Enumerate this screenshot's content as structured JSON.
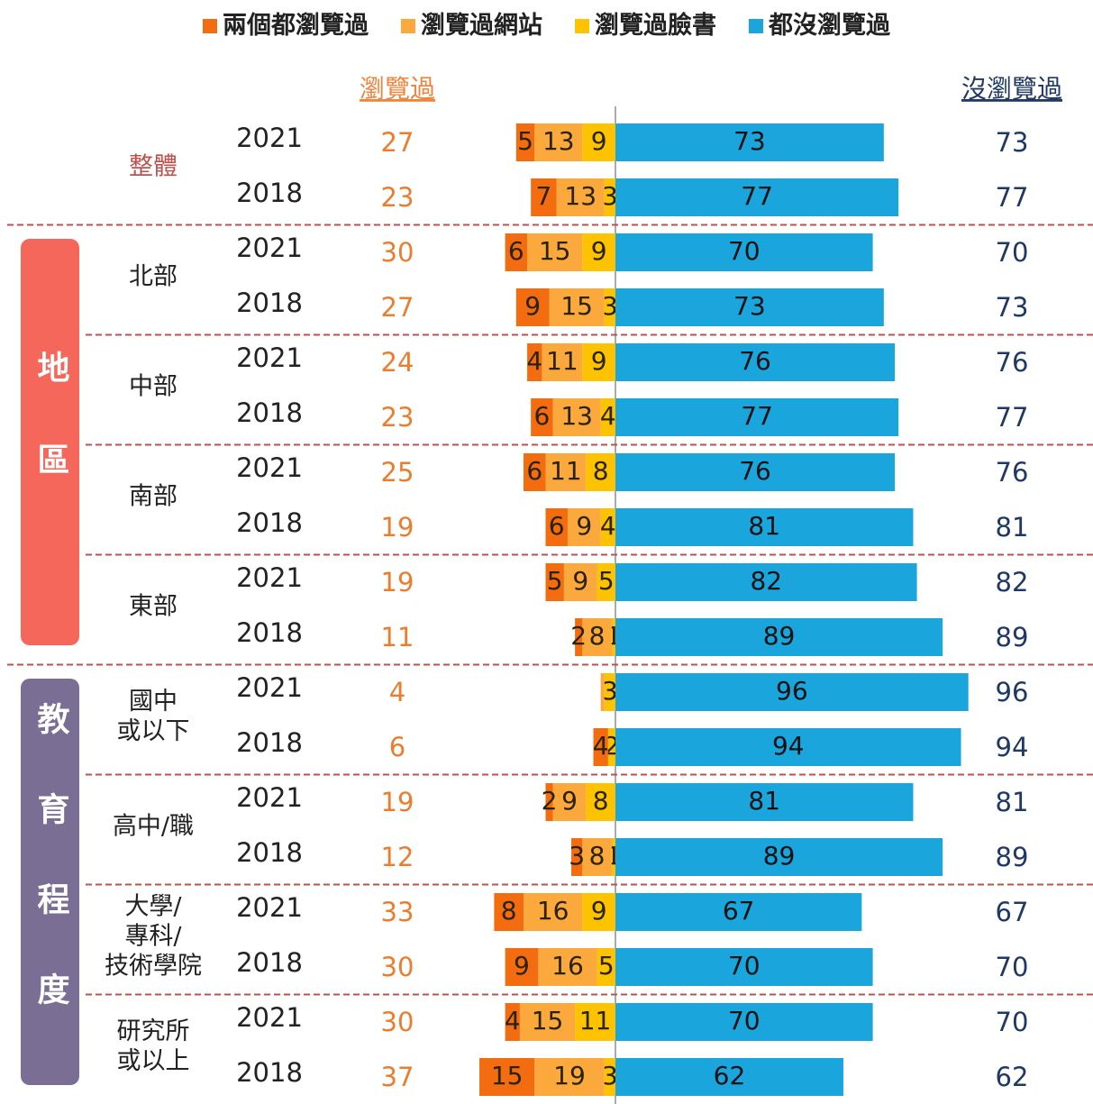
{
  "chart_data": {
    "type": "bar",
    "orientation": "horizontal",
    "stacked": "diverging",
    "legend": "top",
    "viewed_header": "瀏覽過",
    "not_viewed_header": "沒瀏覽過",
    "sections": [
      {
        "label": null,
        "color": null,
        "subgroups": [
          "整體"
        ]
      },
      {
        "label": "地區",
        "color": "#f4675a",
        "subgroups": [
          "北部",
          "中部",
          "南部",
          "東部"
        ]
      },
      {
        "label": "教育程度",
        "color": "#7a6e95",
        "subgroups": [
          "國中\n或以下",
          "高中/職",
          "大學/\n專科/\n技術學院",
          "研究所\n或以上"
        ]
      }
    ],
    "categories": [
      "2021",
      "2018",
      "2021",
      "2018",
      "2021",
      "2018",
      "2021",
      "2018",
      "2021",
      "2018",
      "2021",
      "2018",
      "2021",
      "2018",
      "2021",
      "2018",
      "2021",
      "2018"
    ],
    "series": [
      {
        "name": "兩個都瀏覽過",
        "color": "#f36c10",
        "side": "left",
        "values": [
          5,
          7,
          6,
          9,
          4,
          6,
          6,
          6,
          5,
          2,
          0,
          4,
          2,
          3,
          8,
          9,
          4,
          15
        ],
        "value_labels": [
          "5",
          "7",
          "6",
          "9",
          "4",
          "6",
          "6",
          "6",
          "5",
          "2",
          null,
          "4",
          "2",
          "3",
          "8",
          "9",
          "4",
          "15"
        ]
      },
      {
        "name": "瀏覽過網站",
        "color": "#fba83c",
        "side": "left",
        "values": [
          13,
          13,
          15,
          15,
          11,
          13,
          11,
          9,
          9,
          8,
          1,
          0,
          9,
          8,
          16,
          16,
          15,
          19
        ],
        "value_labels": [
          "13",
          "13",
          "15",
          "15",
          "11",
          "13",
          "11",
          "9",
          "9",
          "8",
          null,
          null,
          "9",
          "8",
          "16",
          "16",
          "15",
          "19"
        ]
      },
      {
        "name": "瀏覽過臉書",
        "color": "#fdc300",
        "side": "left",
        "values": [
          9,
          3,
          9,
          3,
          9,
          4,
          8,
          4,
          5,
          1,
          3,
          2,
          8,
          1,
          9,
          5,
          11,
          3
        ],
        "value_labels": [
          "9",
          "3",
          "9",
          "3",
          "9",
          "4",
          "8",
          "4",
          "5",
          "1",
          "3",
          "2",
          "8",
          "1",
          "9",
          "5",
          "11",
          "3"
        ]
      },
      {
        "name": "都沒瀏覽過",
        "color": "#1aa5dd",
        "side": "right",
        "values": [
          73,
          77,
          70,
          73,
          76,
          77,
          76,
          81,
          82,
          89,
          96,
          94,
          81,
          89,
          67,
          70,
          70,
          62
        ]
      }
    ],
    "viewed_totals": [
      27,
      23,
      30,
      27,
      24,
      23,
      25,
      19,
      19,
      11,
      4,
      6,
      19,
      12,
      33,
      30,
      30,
      37
    ],
    "not_viewed_totals": [
      73,
      77,
      70,
      73,
      76,
      77,
      76,
      81,
      82,
      89,
      96,
      94,
      81,
      89,
      67,
      70,
      70,
      62
    ]
  }
}
